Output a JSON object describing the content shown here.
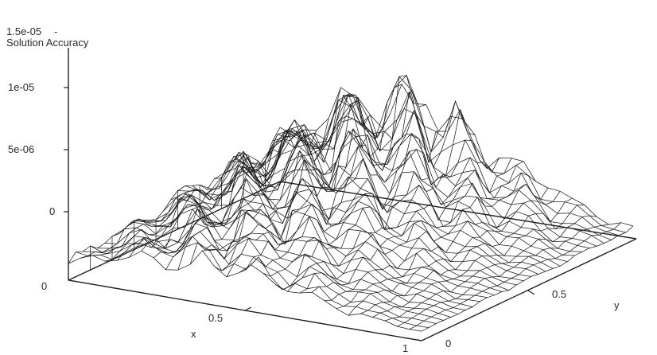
{
  "chart_data": {
    "type": "surface-3d-wireframe",
    "zlabel": "Solution Accuracy",
    "xlabel": "x",
    "ylabel": "y",
    "xlim": [
      0,
      1
    ],
    "ylim": [
      0,
      1
    ],
    "zlim": [
      0,
      1.5e-05
    ],
    "z_ticks": [
      "1.5e-05",
      "1e-05",
      "5e-06",
      "0"
    ],
    "x_ticks": [
      "0",
      "0.5",
      "1"
    ],
    "y_ticks": [
      "0",
      "0.5"
    ],
    "grid_resolution": [
      30,
      30
    ],
    "grid_x": [
      0,
      0.0345,
      0.069,
      0.1034,
      0.1379,
      0.1724,
      0.2069,
      0.2414,
      0.2759,
      0.3103,
      0.3448,
      0.3793,
      0.4138,
      0.4483,
      0.4828,
      0.5172,
      0.5517,
      0.5862,
      0.6207,
      0.6552,
      0.6897,
      0.7241,
      0.7586,
      0.7931,
      0.8276,
      0.8621,
      0.8966,
      0.931,
      0.9655,
      1
    ],
    "grid_y": [
      0,
      0.0345,
      0.069,
      0.1034,
      0.1379,
      0.1724,
      0.2069,
      0.2414,
      0.2759,
      0.3103,
      0.3448,
      0.3793,
      0.4138,
      0.4483,
      0.4828,
      0.5172,
      0.5517,
      0.5862,
      0.6207,
      0.6552,
      0.6897,
      0.7241,
      0.7586,
      0.7931,
      0.8276,
      0.8621,
      0.8966,
      0.931,
      0.9655,
      1
    ],
    "surface_description": "noisy error surface, largest near x≈0.3–0.5 at y≈1 (peaks ~1.5e-05), decaying toward x=1, y=0",
    "colors": {
      "mesh": "#1c1c1c",
      "axes": "#222222",
      "text": "#2a2a2a"
    }
  }
}
